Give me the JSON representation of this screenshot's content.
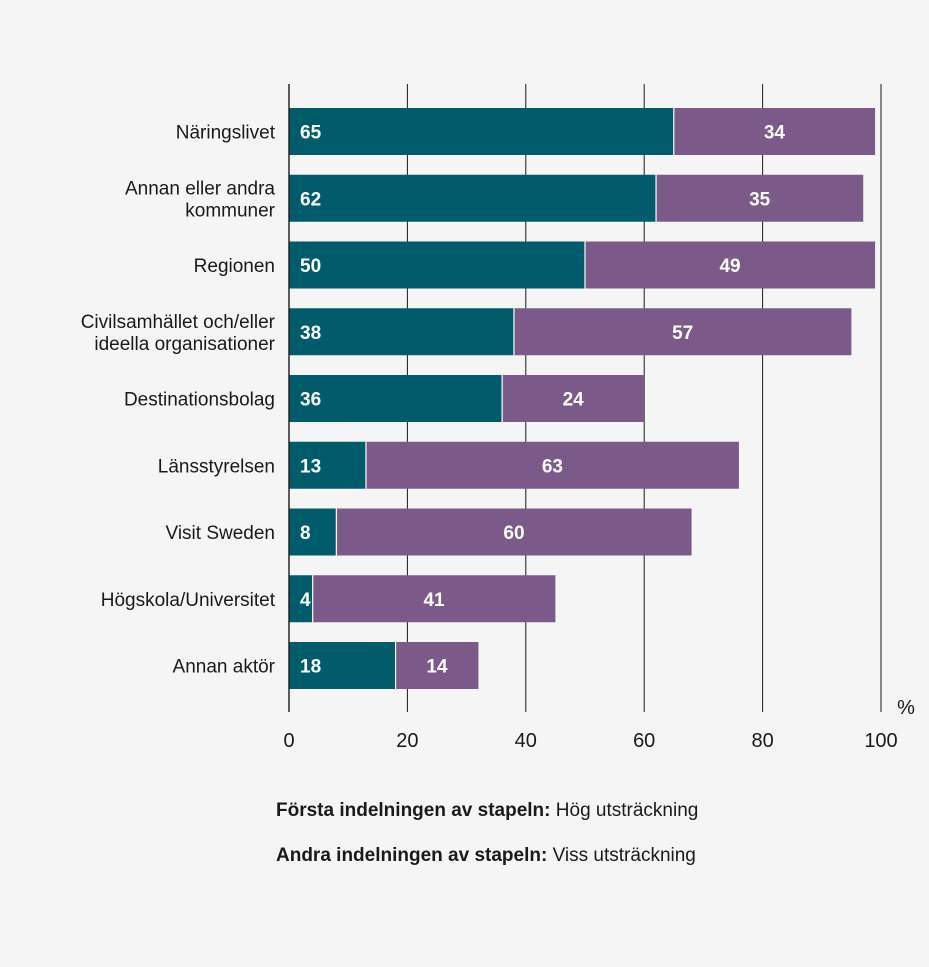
{
  "chart_data": {
    "type": "bar",
    "orientation": "horizontal",
    "stacked": true,
    "categories": [
      [
        "Näringslivet"
      ],
      [
        "Annan eller andra",
        "kommuner"
      ],
      [
        "Regionen"
      ],
      [
        "Civilsamhället och/eller",
        "ideella organisationer"
      ],
      [
        "Destinationsbolag"
      ],
      [
        "Länsstyrelsen"
      ],
      [
        "Visit Sweden"
      ],
      [
        "Högskola/Universitet"
      ],
      [
        "Annan aktör"
      ]
    ],
    "series": [
      {
        "values": [
          65,
          62,
          50,
          38,
          36,
          13,
          8,
          4,
          18
        ],
        "color": "#005c6b"
      },
      {
        "values": [
          34,
          35,
          49,
          57,
          24,
          63,
          60,
          41,
          14
        ],
        "color": "#7b5a8a"
      }
    ],
    "xlim": [
      0,
      100
    ],
    "xticks": [
      0,
      20,
      40,
      60,
      80,
      100
    ],
    "xunit": "%",
    "grid": true,
    "legend": [
      {
        "bold": "Första indelningen av stapeln:",
        "text": " Hög utsträckning"
      },
      {
        "bold": "Andra indelningen av stapeln:",
        "text": " Viss utsträckning"
      }
    ]
  }
}
